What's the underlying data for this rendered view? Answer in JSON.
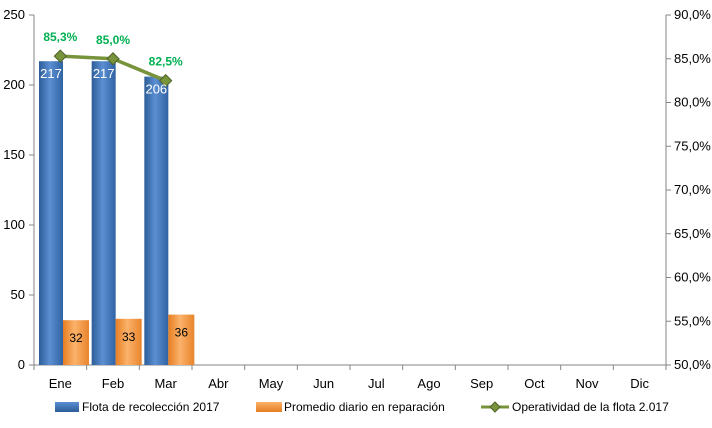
{
  "chart_data": {
    "type": "bar",
    "categories": [
      "Ene",
      "Feb",
      "Mar",
      "Abr",
      "May",
      "Jun",
      "Jul",
      "Ago",
      "Sep",
      "Oct",
      "Nov",
      "Dic"
    ],
    "series": [
      {
        "name": "Flota de recolección 2017",
        "kind": "bar",
        "axis": "left",
        "color": "#4a7ebb",
        "values": [
          217,
          217,
          206,
          null,
          null,
          null,
          null,
          null,
          null,
          null,
          null,
          null
        ],
        "labels": [
          "217",
          "217",
          "206"
        ]
      },
      {
        "name": "Promedio diario en reparación",
        "kind": "bar",
        "axis": "left",
        "color": "#f79646",
        "values": [
          32,
          33,
          36,
          null,
          null,
          null,
          null,
          null,
          null,
          null,
          null,
          null
        ],
        "labels": [
          "32",
          "33",
          "36"
        ]
      },
      {
        "name": "Operatividad de la flota 2.017",
        "kind": "line",
        "axis": "right",
        "color": "#77933c",
        "label_color": "#00b050",
        "values": [
          85.3,
          85.0,
          82.5,
          null,
          null,
          null,
          null,
          null,
          null,
          null,
          null,
          null
        ],
        "labels": [
          "85,3%",
          "85,0%",
          "82,5%"
        ]
      }
    ],
    "y_left": {
      "min": 0,
      "max": 250,
      "ticks": [
        "0",
        "50",
        "100",
        "150",
        "200",
        "250"
      ]
    },
    "y_right": {
      "min": 50,
      "max": 90,
      "ticks": [
        "50,0%",
        "55,0%",
        "60,0%",
        "65,0%",
        "70,0%",
        "75,0%",
        "80,0%",
        "85,0%",
        "90,0%"
      ]
    },
    "grid": false,
    "legend_position": "bottom"
  }
}
